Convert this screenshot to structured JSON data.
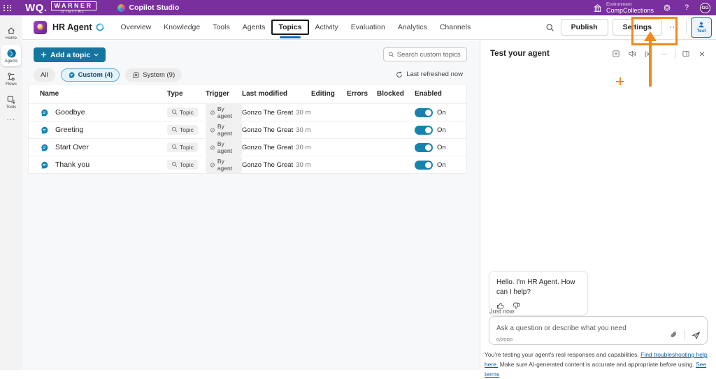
{
  "topbar": {
    "brand_wq": "WQ.",
    "brand_warner": "WARNER",
    "brand_digital": "DIGITAL",
    "app_name": "Copilot Studio",
    "environment_label": "Environment",
    "environment_name": "CompCollections",
    "help_label": "?",
    "avatar_initials": "GG"
  },
  "header": {
    "agent_name": "HR Agent",
    "tabs": [
      {
        "label": "Overview",
        "active": false
      },
      {
        "label": "Knowledge",
        "active": false
      },
      {
        "label": "Tools",
        "active": false
      },
      {
        "label": "Agents",
        "active": false
      },
      {
        "label": "Topics",
        "active": true
      },
      {
        "label": "Activity",
        "active": false
      },
      {
        "label": "Evaluation",
        "active": false
      },
      {
        "label": "Analytics",
        "active": false
      },
      {
        "label": "Channels",
        "active": false
      }
    ],
    "publish_label": "Publish",
    "settings_label": "Settings",
    "test_label": "Test"
  },
  "sidebar": {
    "items": [
      {
        "label": "Home",
        "icon": "home-icon",
        "active": false
      },
      {
        "label": "Agents",
        "icon": "agents-icon",
        "active": true
      },
      {
        "label": "Flows",
        "icon": "flows-icon",
        "active": false
      },
      {
        "label": "Tools",
        "icon": "tools-icon",
        "active": false
      }
    ]
  },
  "toolbar": {
    "add_topic_label": "Add a topic",
    "search_placeholder": "Search custom topics",
    "filters": [
      {
        "label": "All",
        "icon": "",
        "active": false
      },
      {
        "label": "Custom (4)",
        "icon": "chat-icon",
        "active": true
      },
      {
        "label": "System (9)",
        "icon": "gear-chat-icon",
        "active": false
      }
    ],
    "refresh_label": "Last refreshed now"
  },
  "table": {
    "columns": [
      "Name",
      "Type",
      "Trigger",
      "Last modified",
      "Editing",
      "Errors",
      "Blocked",
      "Enabled"
    ],
    "rows": [
      {
        "name": "Goodbye",
        "type": "Topic",
        "trigger": "By agent",
        "modified_by": "Gonzo The Great",
        "modified_time": "30 mi...",
        "enabled": "On"
      },
      {
        "name": "Greeting",
        "type": "Topic",
        "trigger": "By agent",
        "modified_by": "Gonzo The Great",
        "modified_time": "30 mi...",
        "enabled": "On"
      },
      {
        "name": "Start Over",
        "type": "Topic",
        "trigger": "By agent",
        "modified_by": "Gonzo The Great",
        "modified_time": "30 mi...",
        "enabled": "On"
      },
      {
        "name": "Thank you",
        "type": "Topic",
        "trigger": "By agent",
        "modified_by": "Gonzo The Great",
        "modified_time": "30 mi...",
        "enabled": "On"
      }
    ]
  },
  "test_panel": {
    "title": "Test your agent",
    "header_icons": [
      "new-window-icon",
      "speech-icon",
      "variables-icon",
      "more-options-icon",
      "divider",
      "dock-icon",
      "close-icon"
    ],
    "message": "Hello. I'm HR Agent. How can I help?",
    "timestamp": "Just now",
    "input_placeholder": "Ask a question or describe what you need",
    "char_counter": "0/2000",
    "footer_text1": "You're testing your agent's real responses and capabilities. ",
    "footer_link1": "Find troubleshooting help here.",
    "footer_text2": " Make sure AI-generated content is accurate and appropriate before using. ",
    "footer_link2": "See terms"
  },
  "colors": {
    "topbar_purple": "#7a2f9e",
    "accent_blue": "#0f6cbd",
    "teal_button": "#16759e",
    "toggle_on": "#1583af",
    "annotation_orange": "#f08a1d"
  }
}
